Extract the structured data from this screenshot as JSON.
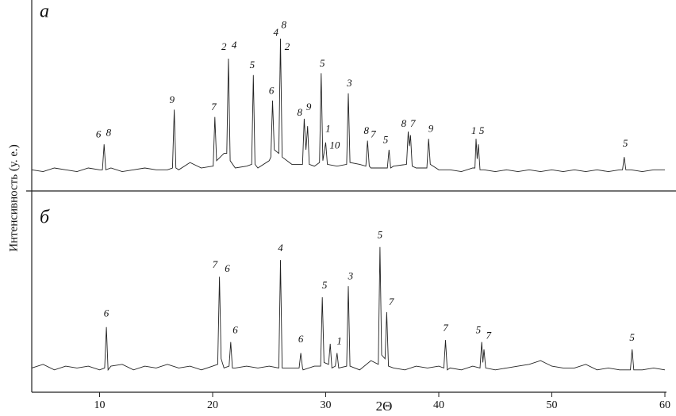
{
  "chart_data": [
    {
      "type": "line",
      "title": "а",
      "ylabel": "Интенсивность (у. е.)",
      "xlim": [
        4,
        60
      ],
      "ylim": [
        0,
        100
      ],
      "color": "#222",
      "x": [
        4,
        5,
        6,
        7,
        8,
        9,
        10,
        10.25,
        10.4,
        10.55,
        11,
        12,
        13,
        14,
        15,
        16,
        16.45,
        16.6,
        16.75,
        17,
        18,
        19,
        20,
        20.05,
        20.2,
        20.35,
        21,
        21.25,
        21.4,
        21.55,
        22,
        23,
        23.45,
        23.6,
        23.75,
        24,
        25,
        25.15,
        25.3,
        25.45,
        25.85,
        26,
        26.15,
        27,
        27.95,
        28.1,
        28.25,
        28.4,
        28.55,
        29,
        29.45,
        29.6,
        29.75,
        30,
        30.15,
        31,
        31.85,
        32,
        32.15,
        33,
        33.55,
        33.7,
        33.85,
        34,
        35,
        35.45,
        35.6,
        35.75,
        36,
        37.15,
        37.3,
        37.4,
        37.5,
        37.65,
        38,
        38.95,
        39.1,
        39.25,
        40,
        41,
        42,
        43,
        43.2,
        43.3,
        43.4,
        43.5,
        43.65,
        44,
        45,
        46,
        47,
        48,
        49,
        50,
        51,
        52,
        53,
        54,
        55,
        56,
        56.25,
        56.4,
        56.55,
        57,
        58,
        59,
        60
      ],
      "values": [
        9,
        8,
        10,
        9,
        8,
        10,
        9,
        9,
        23,
        9,
        10,
        8,
        9,
        10,
        9,
        9,
        10,
        42,
        10,
        9,
        13,
        10,
        11,
        11,
        38,
        14,
        18,
        18,
        70,
        14,
        10,
        11,
        12,
        61,
        12,
        10,
        14,
        16,
        47,
        20,
        18,
        81,
        16,
        12,
        12,
        37,
        20,
        33,
        12,
        11,
        13,
        62,
        14,
        24,
        12,
        11,
        12,
        51,
        13,
        12,
        11,
        25,
        11,
        10,
        10,
        10,
        20,
        10,
        11,
        12,
        30,
        22,
        28,
        11,
        10,
        10,
        26,
        12,
        9,
        9,
        8,
        10,
        10,
        26,
        15,
        23,
        9,
        9,
        8,
        9,
        8,
        9,
        8,
        9,
        8,
        9,
        8,
        9,
        8,
        9,
        9,
        16,
        9,
        9,
        8,
        9,
        9
      ],
      "annotations": [
        {
          "text": "6",
          "x": 9.9,
          "y": 28
        },
        {
          "text": "8",
          "x": 10.8,
          "y": 29
        },
        {
          "text": "9",
          "x": 16.4,
          "y": 47
        },
        {
          "text": "7",
          "x": 20.1,
          "y": 43
        },
        {
          "text": "2",
          "x": 21.0,
          "y": 76
        },
        {
          "text": "4",
          "x": 21.9,
          "y": 77
        },
        {
          "text": "5",
          "x": 23.5,
          "y": 66
        },
        {
          "text": "6",
          "x": 25.2,
          "y": 52
        },
        {
          "text": "4",
          "x": 25.6,
          "y": 84
        },
        {
          "text": "8",
          "x": 26.3,
          "y": 88
        },
        {
          "text": "2",
          "x": 26.6,
          "y": 76
        },
        {
          "text": "8",
          "x": 27.7,
          "y": 40
        },
        {
          "text": "9",
          "x": 28.5,
          "y": 43
        },
        {
          "text": "5",
          "x": 29.7,
          "y": 67
        },
        {
          "text": "1",
          "x": 30.2,
          "y": 31
        },
        {
          "text": "10",
          "x": 30.8,
          "y": 22
        },
        {
          "text": "3",
          "x": 32.1,
          "y": 56
        },
        {
          "text": "8",
          "x": 33.6,
          "y": 30
        },
        {
          "text": "7",
          "x": 34.2,
          "y": 28
        },
        {
          "text": "5",
          "x": 35.3,
          "y": 25
        },
        {
          "text": "8",
          "x": 36.9,
          "y": 34
        },
        {
          "text": "7",
          "x": 37.7,
          "y": 34
        },
        {
          "text": "9",
          "x": 39.3,
          "y": 31
        },
        {
          "text": "1",
          "x": 43.1,
          "y": 30
        },
        {
          "text": "5",
          "x": 43.8,
          "y": 30
        },
        {
          "text": "5",
          "x": 56.5,
          "y": 23
        }
      ]
    },
    {
      "type": "line",
      "title": "б",
      "xlabel": "2Θ",
      "xlim": [
        4,
        60
      ],
      "ylim": [
        0,
        100
      ],
      "xticks": [
        10,
        20,
        30,
        40,
        50,
        60
      ],
      "color": "#222",
      "x": [
        4,
        5,
        6,
        7,
        8,
        9,
        10,
        10.45,
        10.6,
        10.75,
        11,
        12,
        13,
        14,
        15,
        16,
        17,
        18,
        19,
        20,
        20.45,
        20.6,
        20.75,
        21,
        21.45,
        21.6,
        21.75,
        22,
        23,
        24,
        25,
        25.85,
        26,
        26.15,
        27,
        27.65,
        27.8,
        27.95,
        28,
        29,
        29.55,
        29.7,
        29.85,
        30.25,
        30.4,
        30.55,
        30.85,
        31,
        31.15,
        31.85,
        32,
        32.15,
        33,
        34,
        34.65,
        34.8,
        34.95,
        35.25,
        35.4,
        35.55,
        36,
        37,
        38,
        39,
        40,
        40.45,
        40.6,
        40.75,
        41,
        42,
        43,
        43.65,
        43.8,
        43.9,
        44,
        44.15,
        45,
        46,
        47,
        48,
        49,
        50,
        51,
        52,
        53,
        54,
        55,
        56,
        56.95,
        57.1,
        57.25,
        58,
        59,
        60
      ],
      "values": [
        13,
        15,
        12,
        14,
        13,
        14,
        12,
        13,
        35,
        12,
        14,
        15,
        12,
        14,
        13,
        15,
        13,
        14,
        12,
        14,
        15,
        62,
        18,
        13,
        14,
        27,
        13,
        13,
        14,
        13,
        14,
        13,
        71,
        13,
        13,
        13,
        21,
        13,
        12,
        14,
        14,
        51,
        16,
        15,
        26,
        13,
        14,
        21,
        13,
        14,
        57,
        14,
        12,
        17,
        15,
        78,
        20,
        18,
        43,
        14,
        13,
        12,
        14,
        13,
        14,
        13,
        28,
        12,
        13,
        12,
        14,
        13,
        27,
        16,
        23,
        13,
        12,
        13,
        14,
        15,
        17,
        14,
        13,
        13,
        15,
        12,
        13,
        12,
        12,
        23,
        12,
        12,
        13,
        12
      ],
      "annotations": [
        {
          "text": "6",
          "x": 10.6,
          "y": 42
        },
        {
          "text": "7",
          "x": 20.2,
          "y": 68
        },
        {
          "text": "6",
          "x": 21.3,
          "y": 66
        },
        {
          "text": "6",
          "x": 22.0,
          "y": 33
        },
        {
          "text": "4",
          "x": 26.0,
          "y": 77
        },
        {
          "text": "6",
          "x": 27.8,
          "y": 28
        },
        {
          "text": "5",
          "x": 29.9,
          "y": 57
        },
        {
          "text": "1",
          "x": 31.2,
          "y": 27
        },
        {
          "text": "3",
          "x": 32.2,
          "y": 62
        },
        {
          "text": "5",
          "x": 34.8,
          "y": 84
        },
        {
          "text": "7",
          "x": 35.8,
          "y": 48
        },
        {
          "text": "7",
          "x": 40.6,
          "y": 34
        },
        {
          "text": "5",
          "x": 43.5,
          "y": 33
        },
        {
          "text": "7",
          "x": 44.4,
          "y": 30
        },
        {
          "text": "5",
          "x": 57.1,
          "y": 29
        }
      ]
    }
  ]
}
